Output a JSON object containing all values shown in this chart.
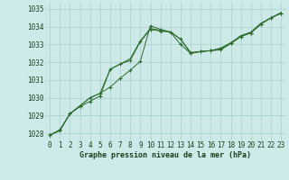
{
  "hours": [
    0,
    1,
    2,
    3,
    4,
    5,
    6,
    7,
    8,
    9,
    10,
    11,
    12,
    13,
    14,
    15,
    16,
    17,
    18,
    19,
    20,
    21,
    22,
    23
  ],
  "line1": [
    1027.9,
    1028.2,
    1029.1,
    1029.5,
    1029.8,
    1030.1,
    1031.6,
    1031.9,
    1032.1,
    1033.15,
    1033.85,
    1033.75,
    1033.7,
    1033.3,
    1032.5,
    1032.6,
    1032.65,
    1032.7,
    1033.05,
    1033.45,
    1033.65,
    1034.15,
    1034.5,
    1034.75
  ],
  "line2": [
    1027.9,
    1028.15,
    1029.1,
    1029.55,
    1030.0,
    1030.25,
    1030.6,
    1031.1,
    1031.55,
    1032.05,
    1034.05,
    1033.85,
    1033.7,
    1033.0,
    1032.5,
    1032.6,
    1032.65,
    1032.75,
    1033.05,
    1033.45,
    1033.65,
    1034.15,
    1034.5,
    1034.75
  ],
  "line3": [
    1027.9,
    1028.15,
    1029.1,
    1029.55,
    1030.0,
    1030.25,
    1031.6,
    1031.9,
    1032.2,
    1033.2,
    1033.9,
    1033.8,
    1033.7,
    1033.3,
    1032.55,
    1032.6,
    1032.65,
    1032.8,
    1033.1,
    1033.5,
    1033.7,
    1034.2,
    1034.5,
    1034.8
  ],
  "bg_color": "#ceeae8",
  "grid_color": "#aed4d2",
  "line_color": "#2d6b2d",
  "ylabel_ticks": [
    1028,
    1029,
    1030,
    1031,
    1032,
    1033,
    1034,
    1035
  ],
  "ylim": [
    1027.6,
    1035.4
  ],
  "xlabel": "Graphe pression niveau de la mer (hPa)",
  "tick_fontsize": 5.5,
  "xlabel_fontsize": 6.0
}
